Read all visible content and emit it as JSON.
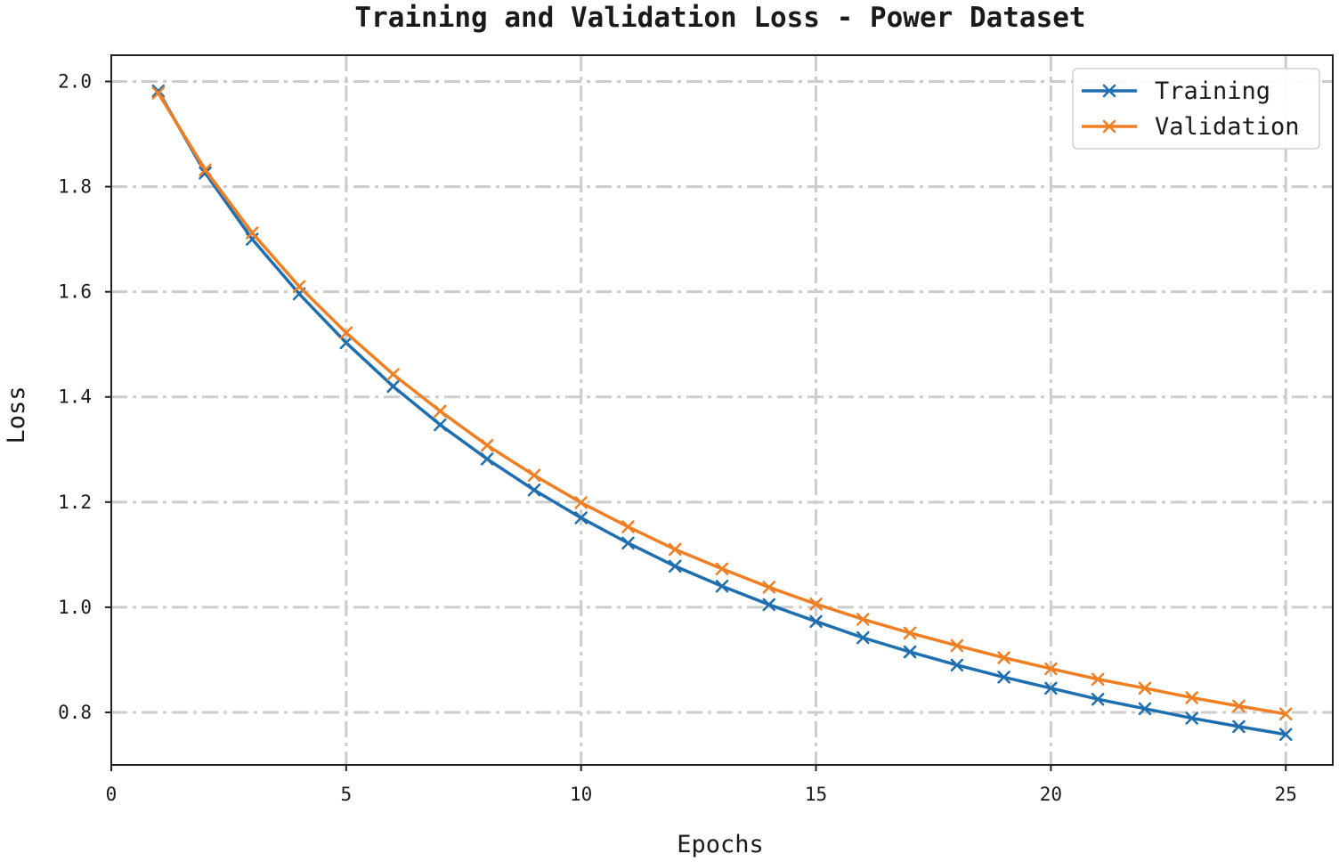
{
  "chart_data": {
    "type": "line",
    "title": "Training and Validation Loss - Power Dataset",
    "xlabel": "Epochs",
    "ylabel": "Loss",
    "xlim": [
      0,
      26
    ],
    "ylim": [
      0.7,
      2.05
    ],
    "xticks": [
      0,
      5,
      10,
      15,
      20,
      25
    ],
    "xtick_labels": [
      "0",
      "5",
      "10",
      "15",
      "20",
      "25"
    ],
    "yticks": [
      0.8,
      1.0,
      1.2,
      1.4,
      1.6,
      1.8,
      2.0
    ],
    "ytick_labels": [
      "0.8",
      "1.0",
      "1.2",
      "1.4",
      "1.6",
      "1.8",
      "2.0"
    ],
    "grid": true,
    "legend_position": "top-right",
    "x": [
      1,
      2,
      3,
      4,
      5,
      6,
      7,
      8,
      9,
      10,
      11,
      12,
      13,
      14,
      15,
      16,
      17,
      18,
      19,
      20,
      21,
      22,
      23,
      24,
      25
    ],
    "series": [
      {
        "name": "Training",
        "color": "#1f6fb0",
        "marker": "x",
        "values": [
          1.982,
          1.826,
          1.7,
          1.596,
          1.503,
          1.42,
          1.347,
          1.282,
          1.223,
          1.17,
          1.122,
          1.078,
          1.04,
          1.005,
          0.973,
          0.942,
          0.915,
          0.89,
          0.867,
          0.846,
          0.825,
          0.807,
          0.789,
          0.773,
          0.758
        ]
      },
      {
        "name": "Validation",
        "color": "#f07f24",
        "marker": "x",
        "values": [
          1.978,
          1.832,
          1.712,
          1.61,
          1.522,
          1.443,
          1.373,
          1.308,
          1.251,
          1.199,
          1.153,
          1.11,
          1.073,
          1.038,
          1.006,
          0.977,
          0.951,
          0.927,
          0.904,
          0.883,
          0.863,
          0.846,
          0.828,
          0.812,
          0.797
        ]
      }
    ]
  }
}
